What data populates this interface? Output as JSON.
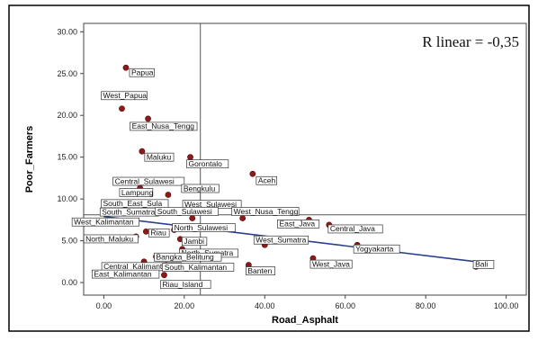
{
  "chart_data": {
    "type": "scatter",
    "xlabel": "Road_Asphalt",
    "ylabel": "Poor_Farmers",
    "xlim": [
      -5,
      105
    ],
    "ylim": [
      -1.5,
      31
    ],
    "x_ticks": [
      0,
      20,
      40,
      60,
      80,
      100
    ],
    "y_ticks": [
      0,
      5,
      10,
      15,
      20,
      25,
      30
    ],
    "x_tick_labels": [
      "0.00",
      "20.00",
      "40.00",
      "60.00",
      "80.00",
      "100.00"
    ],
    "y_tick_labels": [
      "0.00",
      "5.00",
      "10.00",
      "15.00",
      "20.00",
      "25.00",
      "30.00"
    ],
    "reference_lines": {
      "x": 24,
      "y": 8.1
    },
    "fit_line": {
      "x": [
        0,
        92.5
      ],
      "y": [
        7.9,
        2.5
      ]
    },
    "annotation": "R linear = -0,35",
    "grid": false,
    "colors": {
      "point": "#8b1a1a",
      "fit_line": "#2a3f8f",
      "ref_line": "#555555",
      "plot_bg": "#ffffff"
    },
    "points": [
      {
        "label": "Papua",
        "x": 5.5,
        "y": 25.7
      },
      {
        "label": "West_Papua",
        "x": 4.5,
        "y": 20.8
      },
      {
        "label": "East_Nusa_Tengg",
        "x": 11,
        "y": 19.6
      },
      {
        "label": "Maluku",
        "x": 9.5,
        "y": 15.7
      },
      {
        "label": "Gorontalo",
        "x": 21.5,
        "y": 15
      },
      {
        "label": "Aceh",
        "x": 37,
        "y": 13
      },
      {
        "label": "Central_Sulawesi",
        "x": 9,
        "y": 11.3
      },
      {
        "label": "Bengkulu",
        "x": 20,
        "y": 11.2
      },
      {
        "label": "Lampung",
        "x": 16,
        "y": 10.5
      },
      {
        "label": "South_East_Sula",
        "x": 13,
        "y": 9.6
      },
      {
        "label": "West_Sulawesi",
        "x": 20.5,
        "y": 9.3
      },
      {
        "label": "South_Sumatra",
        "x": 12.5,
        "y": 8.6
      },
      {
        "label": "South_Sulawesi",
        "x": 22,
        "y": 7.7
      },
      {
        "label": "West_Nusa_Tengg",
        "x": 34.5,
        "y": 7.7
      },
      {
        "label": "West_Kalimantan",
        "x": 8,
        "y": 7.3
      },
      {
        "label": "East_Java",
        "x": 51,
        "y": 7.5
      },
      {
        "label": "Central_Java",
        "x": 56,
        "y": 6.9
      },
      {
        "label": "Riau",
        "x": 10.5,
        "y": 6.1
      },
      {
        "label": "North_Sulawesi",
        "x": 17.5,
        "y": 6.3
      },
      {
        "label": "North_Maluku",
        "x": 8,
        "y": 5.5
      },
      {
        "label": "Jambi",
        "x": 19,
        "y": 5.2
      },
      {
        "label": "West_Sumatra",
        "x": 40,
        "y": 4.5
      },
      {
        "label": "Yogyakarta",
        "x": 63,
        "y": 4.5
      },
      {
        "label": "North_Sumatra",
        "x": 19.5,
        "y": 4
      },
      {
        "label": "Bangka_Belitung",
        "x": 13,
        "y": 3.1
      },
      {
        "label": "Central_Kalimantan",
        "x": 10,
        "y": 2.5
      },
      {
        "label": "South_Kalimantan",
        "x": 15.5,
        "y": 2.1
      },
      {
        "label": "Banten",
        "x": 36,
        "y": 2.1
      },
      {
        "label": "West_Java",
        "x": 52,
        "y": 2.9
      },
      {
        "label": "Bali",
        "x": 92.5,
        "y": 1.9
      },
      {
        "label": "East_Kalimantan",
        "x": 8.5,
        "y": 1.5
      },
      {
        "label": "Riau_Island",
        "x": 15,
        "y": 0.9
      }
    ]
  }
}
